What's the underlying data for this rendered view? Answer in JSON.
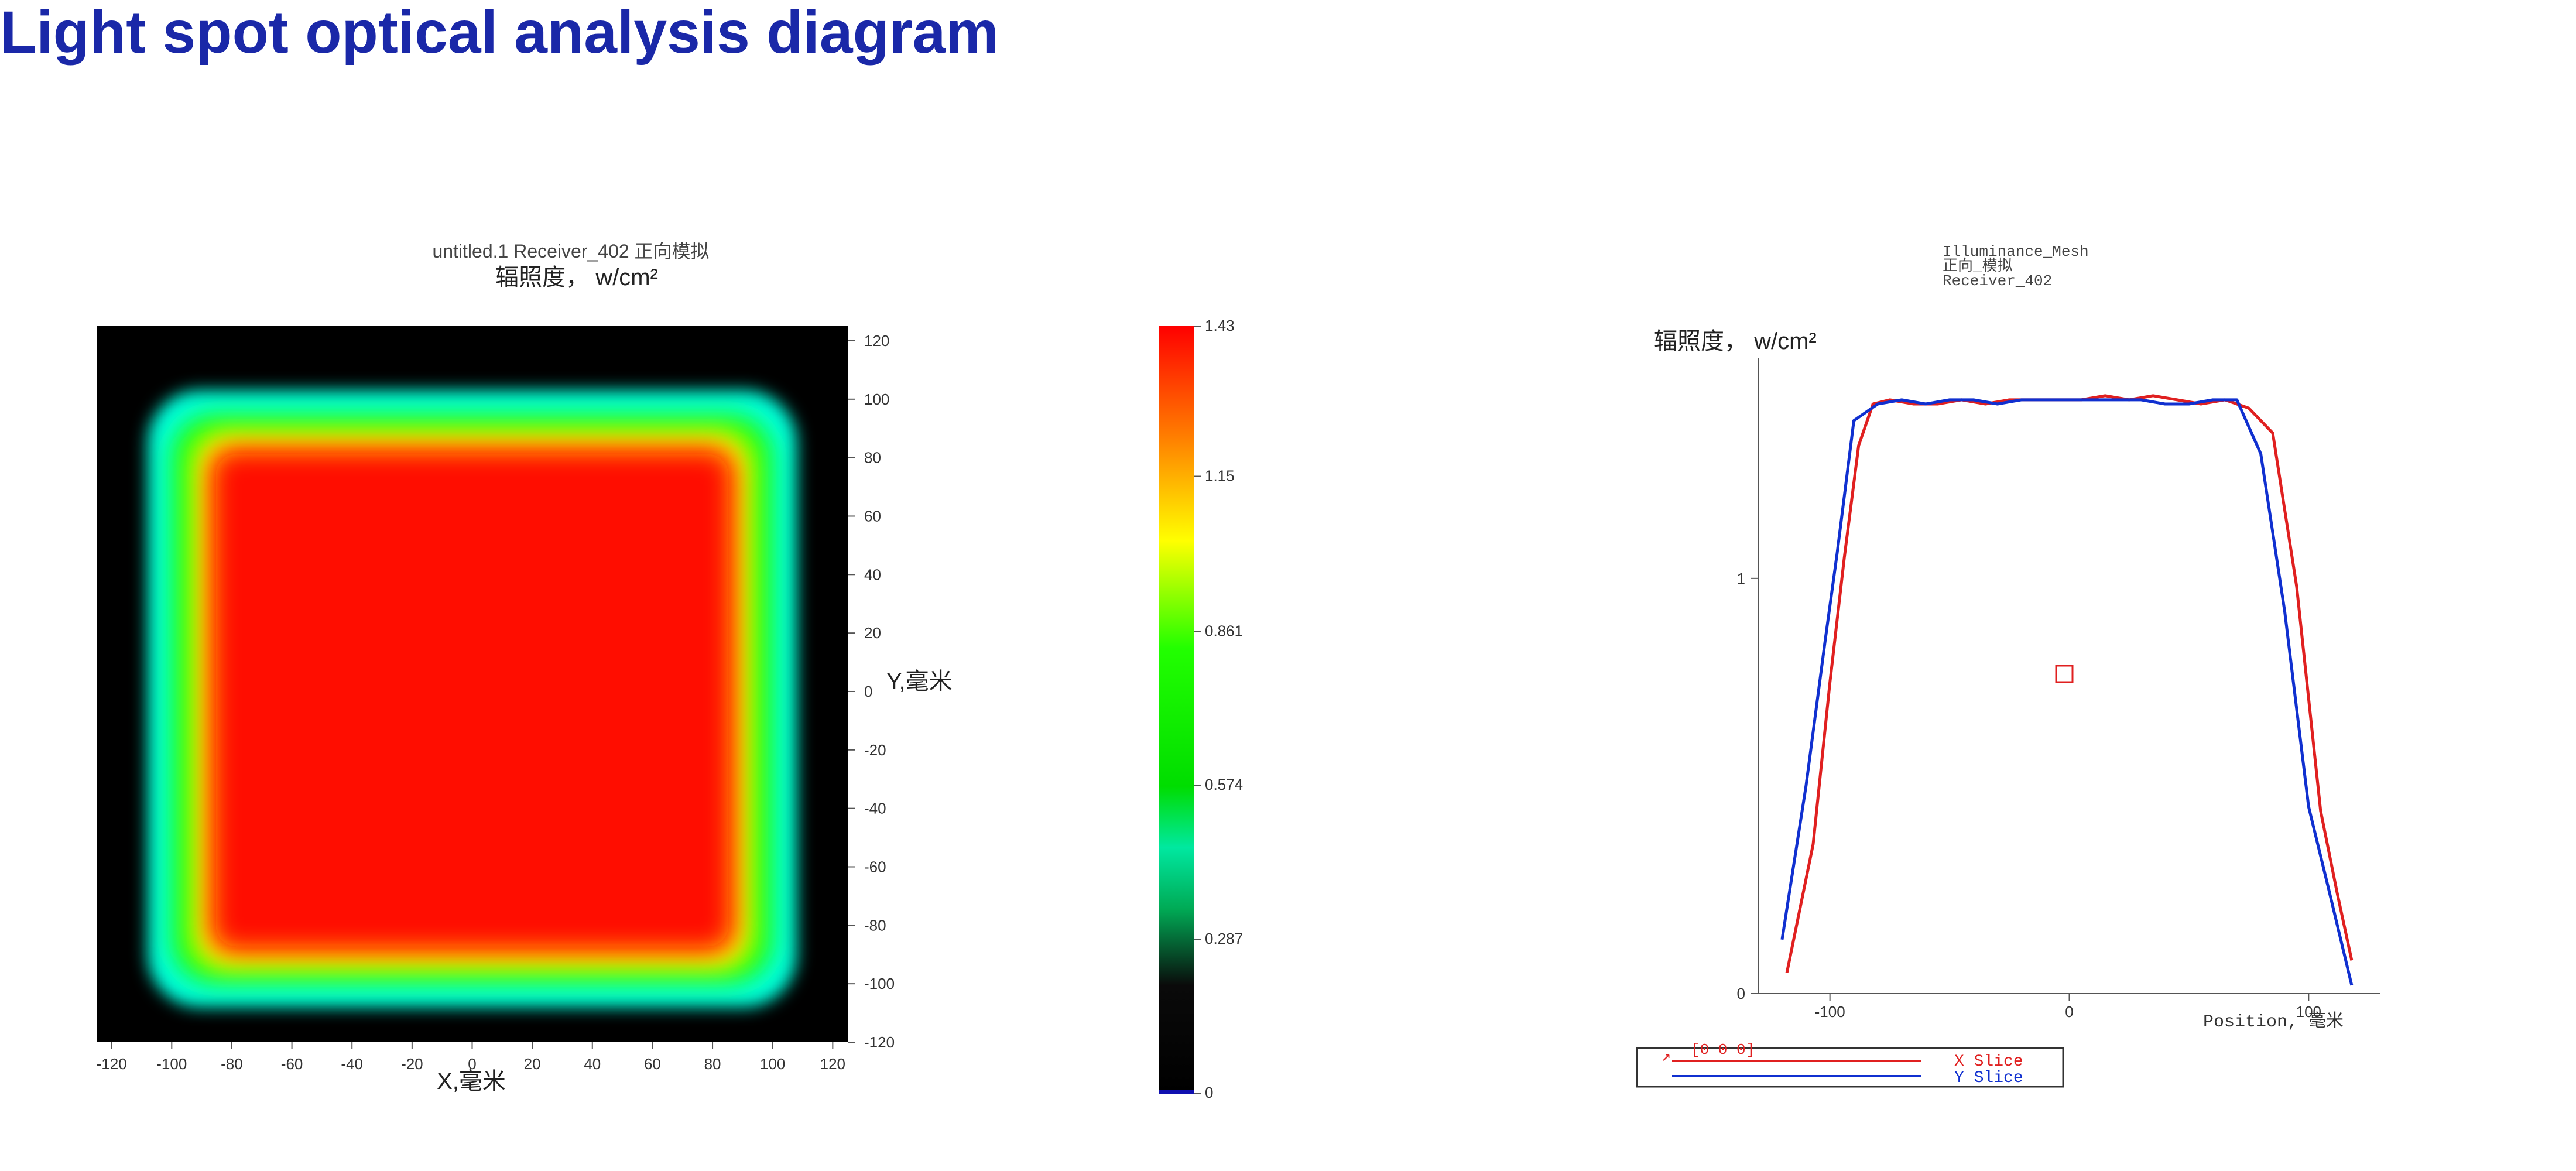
{
  "page": {
    "title": "Light spot optical analysis diagram"
  },
  "colors": {
    "title": "#1a28a8",
    "x_slice": "#e02020",
    "y_slice": "#1030d0"
  },
  "chart_data": [
    {
      "type": "heatmap",
      "title": "untitled.1 Receiver_402 正向模拟",
      "subtitle": "辐照度， w/cm²",
      "xlabel": "X,毫米",
      "ylabel": "Y,毫米",
      "xlim": [
        -125,
        125
      ],
      "ylim": [
        -120,
        125
      ],
      "x_ticks": [
        -120,
        -100,
        -80,
        -60,
        -40,
        -20,
        0,
        20,
        40,
        60,
        80,
        100,
        120
      ],
      "y_ticks": [
        120,
        100,
        80,
        60,
        40,
        20,
        0,
        -20,
        -40,
        -60,
        -80,
        -100,
        -120
      ],
      "spot": {
        "x_range": [
          -108,
          108
        ],
        "y_range": [
          -108,
          103
        ],
        "core_x_range": [
          -88,
          88
        ],
        "core_y_range": [
          -90,
          84
        ],
        "peak_value": 1.43
      },
      "colorbar": {
        "ticks": [
          "1.43",
          "1.15",
          "0.861",
          "0.574",
          "0.287",
          "0"
        ],
        "tick_values": [
          1.43,
          1.15,
          0.861,
          0.574,
          0.287,
          0
        ],
        "range": [
          0,
          1.43
        ]
      }
    },
    {
      "type": "line",
      "title_lines": [
        "Illuminance_Mesh",
        "正向_模拟",
        "Receiver_402"
      ],
      "ylabel": "辐照度， w/cm²",
      "xlabel": "Position, 毫米",
      "xlim": [
        -130,
        130
      ],
      "ylim": [
        0,
        1.53
      ],
      "x_ticks": [
        "-100",
        "0",
        "100"
      ],
      "x_tick_values": [
        -100,
        0,
        100
      ],
      "y_ticks": [
        "0",
        "1"
      ],
      "y_tick_values": [
        0,
        1
      ],
      "legend_coords": "[0 0 0]",
      "series": [
        {
          "name": "X Slice",
          "x": [
            -118,
            -107,
            -100,
            -94,
            -88,
            -82,
            -75,
            -65,
            -55,
            -45,
            -35,
            -25,
            -15,
            -5,
            5,
            15,
            25,
            35,
            45,
            55,
            65,
            75,
            85,
            95,
            105,
            112,
            118
          ],
          "y": [
            0.05,
            0.36,
            0.75,
            1.05,
            1.32,
            1.42,
            1.43,
            1.42,
            1.42,
            1.43,
            1.42,
            1.43,
            1.43,
            1.43,
            1.43,
            1.44,
            1.43,
            1.44,
            1.43,
            1.42,
            1.43,
            1.41,
            1.35,
            0.98,
            0.44,
            0.24,
            0.08
          ]
        },
        {
          "name": "Y Slice",
          "x": [
            -120,
            -110,
            -102,
            -97,
            -90,
            -80,
            -70,
            -60,
            -50,
            -40,
            -30,
            -20,
            -10,
            0,
            10,
            20,
            30,
            40,
            50,
            60,
            70,
            80,
            90,
            100,
            108,
            118
          ],
          "y": [
            0.13,
            0.5,
            0.85,
            1.06,
            1.38,
            1.42,
            1.43,
            1.42,
            1.43,
            1.43,
            1.42,
            1.43,
            1.43,
            1.43,
            1.43,
            1.43,
            1.43,
            1.42,
            1.42,
            1.43,
            1.43,
            1.3,
            0.92,
            0.45,
            0.26,
            0.02
          ]
        }
      ]
    }
  ]
}
